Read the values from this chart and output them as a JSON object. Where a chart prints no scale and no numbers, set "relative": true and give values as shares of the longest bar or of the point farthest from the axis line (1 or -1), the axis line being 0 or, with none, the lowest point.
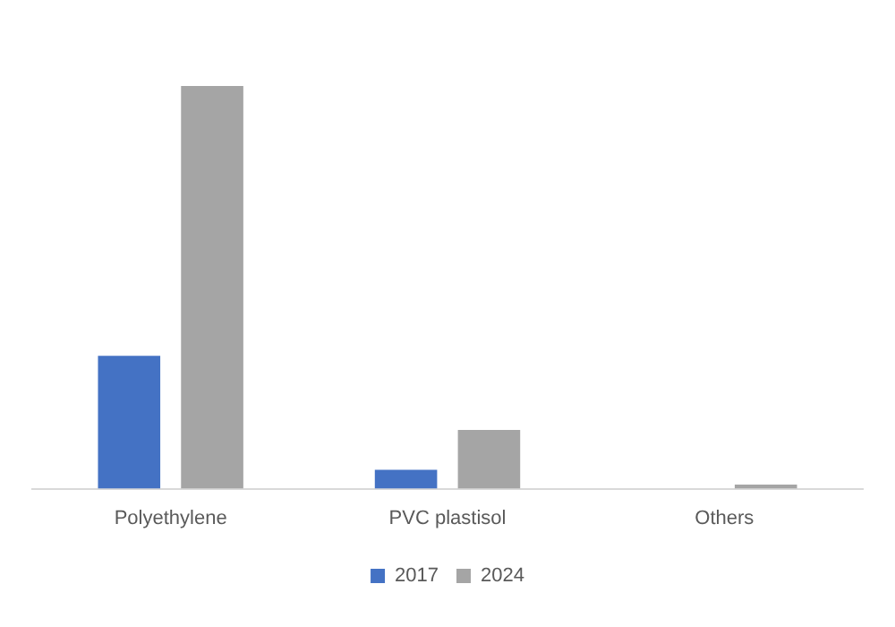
{
  "chart_data": {
    "type": "bar",
    "relative": true,
    "categories": [
      "Polyethylene",
      "PVC plastisol",
      "Others"
    ],
    "series": [
      {
        "name": "2017",
        "color": "#4472c4",
        "values": [
          0.33,
          0.047,
          0
        ]
      },
      {
        "name": "2024",
        "color": "#a5a5a5",
        "values": [
          1,
          0.146,
          0.01
        ]
      }
    ],
    "legend": "bottom",
    "grid": false
  }
}
